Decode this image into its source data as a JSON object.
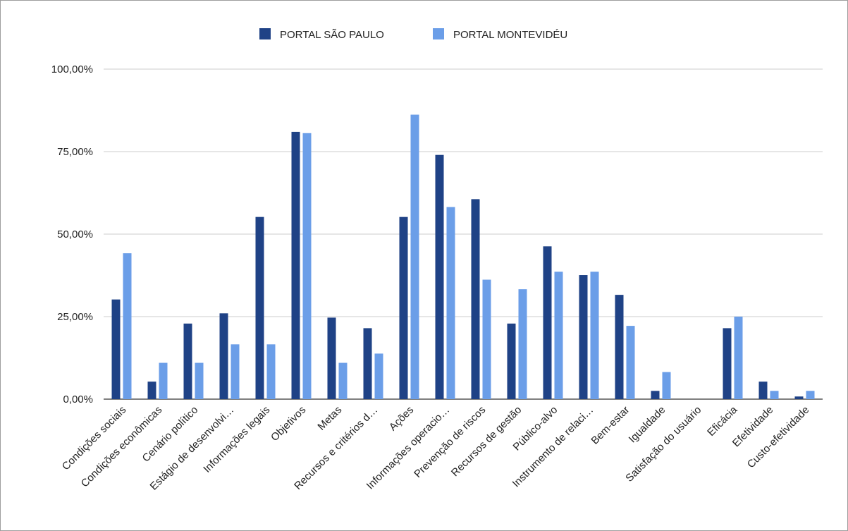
{
  "chart_data": {
    "type": "bar",
    "categories": [
      "Condições sociais",
      "Condições econômicas",
      "Cenário político",
      "Estágio de desenvolvi…",
      "Informações legais",
      "Objetivos",
      "Metas",
      "Recursos e critérios d…",
      "Ações",
      "Informações operacio…",
      "Prevenção de riscos",
      "Recursos de gestão",
      "Público-alvo",
      "Instrumento de relaci…",
      "Bem-estar",
      "Igualdade",
      "Satisfação do usuário",
      "Eficácia",
      "Efetividade",
      "Custo-efetividade"
    ],
    "series": [
      {
        "name": "PORTAL SÃO PAULO",
        "color": "#1f4286",
        "values": [
          30.2,
          5.3,
          22.9,
          26.0,
          55.2,
          81.0,
          24.7,
          21.5,
          55.2,
          74.0,
          60.6,
          22.9,
          46.3,
          37.6,
          31.6,
          2.5,
          0.0,
          21.5,
          5.3,
          0.8
        ]
      },
      {
        "name": "PORTAL MONTEVIDÉU",
        "color": "#6b9ee8",
        "values": [
          44.2,
          11.0,
          11.0,
          16.6,
          16.6,
          80.6,
          11.0,
          13.8,
          86.2,
          58.2,
          36.2,
          33.3,
          38.6,
          38.6,
          22.2,
          8.2,
          0.0,
          25.0,
          2.5,
          2.5
        ]
      }
    ],
    "y_ticks": [
      "0,00%",
      "25,00%",
      "50,00%",
      "75,00%",
      "100,00%"
    ],
    "ylim": [
      0,
      100
    ],
    "title": "",
    "xlabel": "",
    "ylabel": "",
    "grid": true,
    "legend_position": "top-center"
  }
}
